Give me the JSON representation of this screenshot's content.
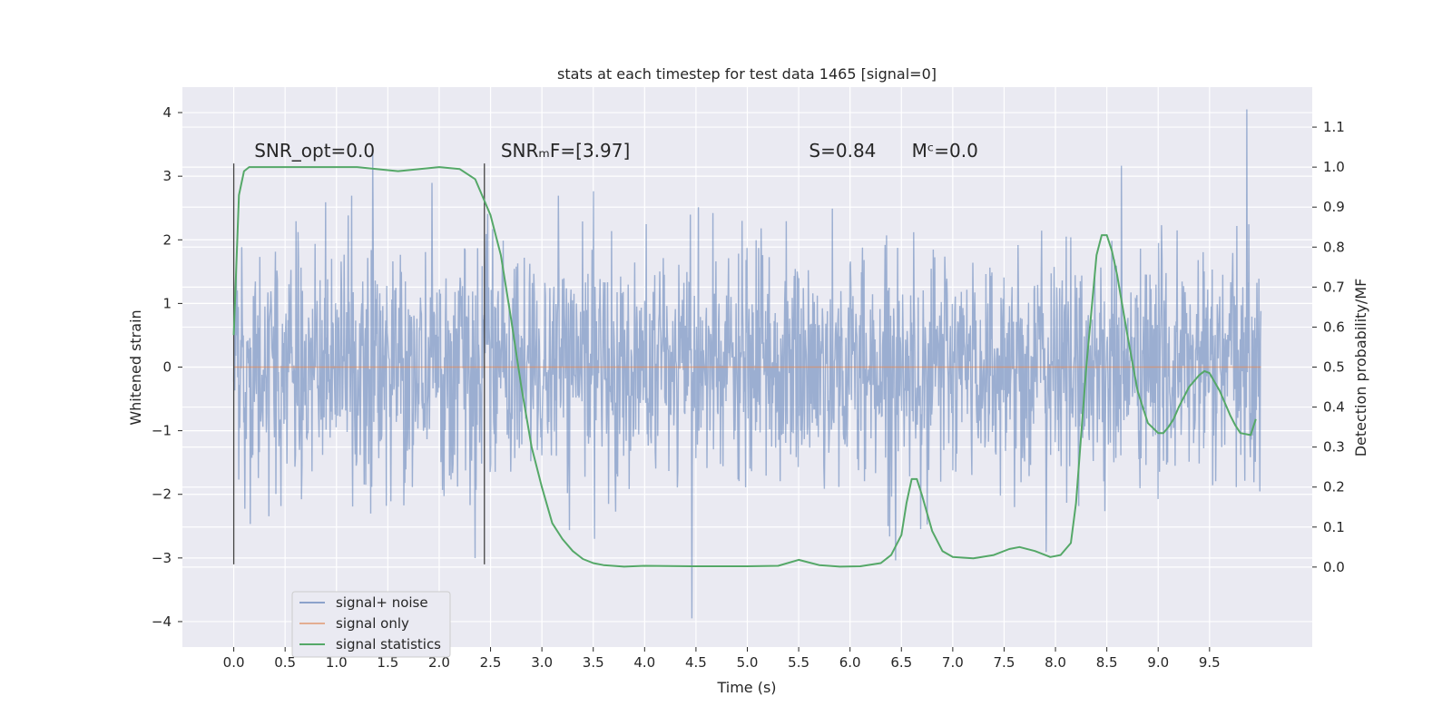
{
  "chart_data": {
    "type": "line",
    "title": "stats at each timestep for test data 1465 [signal=0]",
    "xlabel": "Time (s)",
    "ylabel": "Whitened strain",
    "ylabel_right": "Detection probability/MF",
    "xlim": [
      -0.5,
      10.5
    ],
    "ylim": [
      -4.4,
      4.4
    ],
    "ylim_right": [
      -0.2,
      1.2
    ],
    "x_ticks": [
      0.0,
      0.5,
      1.0,
      1.5,
      2.0,
      2.5,
      3.0,
      3.5,
      4.0,
      4.5,
      5.0,
      5.5,
      6.0,
      6.5,
      7.0,
      7.5,
      8.0,
      8.5,
      9.0,
      9.5
    ],
    "x_tick_labels": [
      "0.0",
      "0.5",
      "1.0",
      "1.5",
      "2.0",
      "2.5",
      "3.0",
      "3.5",
      "4.0",
      "4.5",
      "5.0",
      "5.5",
      "6.0",
      "6.5",
      "7.0",
      "7.5",
      "8.0",
      "8.5",
      "9.0",
      "9.5"
    ],
    "y_ticks": [
      4,
      3,
      2,
      1,
      0,
      -1,
      -2,
      -3,
      -4
    ],
    "y_tick_labels": [
      "4",
      "3",
      "2",
      "1",
      "0",
      "−1",
      "−2",
      "−3",
      "−4"
    ],
    "y_right_ticks": [
      1.1,
      1.0,
      0.9,
      0.8,
      0.7,
      0.6,
      0.5,
      0.4,
      0.3,
      0.2,
      0.1,
      0.0
    ],
    "y_right_tick_labels": [
      "1.1",
      "1.0",
      "0.9",
      "0.8",
      "0.7",
      "0.6",
      "0.5",
      "0.4",
      "0.3",
      "0.2",
      "0.1",
      "0.0"
    ],
    "grid": true,
    "legend_position": "lower-left",
    "annotations": [
      {
        "id": "snr-opt",
        "text": "SNR_opt=0.0",
        "x": 0.2,
        "y": 3.3
      },
      {
        "id": "snr-mf",
        "text": "SNRₘF=[3.97]",
        "x": 2.6,
        "y": 3.3
      },
      {
        "id": "s-value",
        "text": "S=0.84",
        "x": 5.6,
        "y": 3.3
      },
      {
        "id": "mc-value",
        "text": "Mᶜ=0.0",
        "x": 6.6,
        "y": 3.3
      }
    ],
    "vertical_lines": [
      {
        "x": 0.0,
        "y_from": -3.1,
        "y_to": 3.2
      },
      {
        "x": 2.44,
        "y_from": -3.1,
        "y_to": 3.2
      }
    ],
    "series": [
      {
        "name": "signal+ noise",
        "color": "#4c72b0",
        "axis": "left",
        "x_range": [
          0.0,
          10.0
        ],
        "n_samples": 2048,
        "envelope_std": 0.9,
        "peak_max": 4.05,
        "peak_min": -3.95
      },
      {
        "name": "signal only",
        "color": "#dd8452",
        "axis": "left",
        "x": [
          0.0,
          10.0
        ],
        "y": [
          0.0,
          0.0
        ]
      },
      {
        "name": "signal statistics",
        "color": "#55a868",
        "axis": "right",
        "x": [
          0.0,
          0.05,
          0.1,
          0.15,
          0.2,
          0.4,
          0.8,
          1.2,
          1.6,
          2.0,
          2.2,
          2.35,
          2.5,
          2.6,
          2.7,
          2.8,
          2.9,
          3.0,
          3.1,
          3.2,
          3.3,
          3.4,
          3.5,
          3.6,
          3.8,
          4.0,
          4.5,
          5.0,
          5.3,
          5.5,
          5.7,
          5.9,
          6.1,
          6.3,
          6.4,
          6.5,
          6.55,
          6.6,
          6.65,
          6.7,
          6.8,
          6.9,
          7.0,
          7.2,
          7.4,
          7.55,
          7.65,
          7.8,
          7.95,
          8.05,
          8.15,
          8.2,
          8.3,
          8.4,
          8.45,
          8.5,
          8.55,
          8.6,
          8.7,
          8.8,
          8.9,
          9.0,
          9.05,
          9.1,
          9.15,
          9.2,
          9.3,
          9.4,
          9.45,
          9.5,
          9.6,
          9.7,
          9.75,
          9.8,
          9.9,
          9.95
        ],
        "y": [
          0.58,
          0.93,
          0.99,
          1.0,
          1.0,
          1.0,
          1.0,
          1.0,
          0.99,
          1.0,
          0.995,
          0.97,
          0.88,
          0.78,
          0.62,
          0.45,
          0.3,
          0.2,
          0.11,
          0.07,
          0.04,
          0.02,
          0.01,
          0.005,
          0.001,
          0.003,
          0.002,
          0.002,
          0.003,
          0.018,
          0.005,
          0.001,
          0.002,
          0.01,
          0.03,
          0.08,
          0.16,
          0.22,
          0.22,
          0.18,
          0.09,
          0.04,
          0.025,
          0.022,
          0.03,
          0.045,
          0.05,
          0.04,
          0.025,
          0.03,
          0.06,
          0.16,
          0.5,
          0.78,
          0.83,
          0.83,
          0.79,
          0.73,
          0.58,
          0.44,
          0.36,
          0.335,
          0.335,
          0.35,
          0.37,
          0.4,
          0.45,
          0.48,
          0.49,
          0.485,
          0.44,
          0.38,
          0.355,
          0.335,
          0.33,
          0.37
        ]
      }
    ]
  }
}
